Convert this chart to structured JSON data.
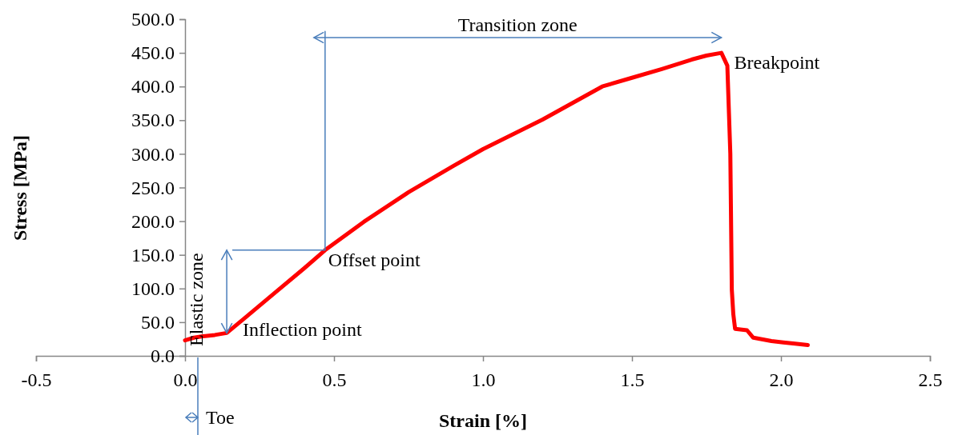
{
  "chart_data": {
    "type": "line",
    "xlabel": "Strain [%]",
    "ylabel": "Stress [MPa]",
    "xlim": [
      -0.5,
      2.5
    ],
    "ylim": [
      0,
      500
    ],
    "xticks": [
      {
        "value": -0.5,
        "label": "-0.5"
      },
      {
        "value": 0,
        "label": "0.0"
      },
      {
        "value": 0.5,
        "label": "0.5"
      },
      {
        "value": 1,
        "label": "1.0"
      },
      {
        "value": 1.5,
        "label": "1.5"
      },
      {
        "value": 2,
        "label": "2.0"
      },
      {
        "value": 2.5,
        "label": "2.5"
      }
    ],
    "yticks": [
      {
        "value": 0,
        "label": "0.0"
      },
      {
        "value": 50,
        "label": "50.0"
      },
      {
        "value": 100,
        "label": "100.0"
      },
      {
        "value": 150,
        "label": "150.0"
      },
      {
        "value": 200,
        "label": "200.0"
      },
      {
        "value": 250,
        "label": "250.0"
      },
      {
        "value": 300,
        "label": "300.0"
      },
      {
        "value": 350,
        "label": "350.0"
      },
      {
        "value": 400,
        "label": "400.0"
      },
      {
        "value": 450,
        "label": "450.0"
      },
      {
        "value": 500,
        "label": "500.0"
      }
    ],
    "grid": false,
    "marker": "none",
    "line_style": "solid",
    "series": [
      {
        "color": "#ff0000",
        "x": [
          0,
          0.03,
          0.06,
          0.1,
          0.14,
          0.2,
          0.3,
          0.4,
          0.47,
          0.6,
          0.75,
          0.9,
          1.0,
          1.2,
          1.4,
          1.5,
          1.6,
          1.7,
          1.75,
          1.8,
          1.82,
          1.83,
          1.835,
          1.84,
          1.846,
          1.886,
          1.907,
          1.968,
          2.008,
          2.047,
          2.09
        ],
        "values": [
          23,
          27,
          29,
          31,
          34,
          56,
          93,
          130,
          157,
          199,
          243,
          282,
          307,
          351,
          400,
          413,
          426,
          440,
          446,
          450,
          431,
          300,
          98,
          62,
          40,
          38,
          27,
          22,
          20,
          18,
          16
        ]
      },
      {
        "color": "#4a7ebb",
        "x": [
          0.16,
          0.47,
          0.47
        ],
        "values": [
          157,
          157,
          482
        ]
      }
    ],
    "annotations": [
      "Transition zone",
      {
        "text": "Breakpoint",
        "x": 1.8,
        "y": 450
      },
      {
        "text": "Offset point",
        "x": 0.47,
        "y": 157
      },
      {
        "text": "Inflection point",
        "x": 0.14,
        "y": 34
      },
      "Elastic zone",
      "Toe"
    ]
  }
}
